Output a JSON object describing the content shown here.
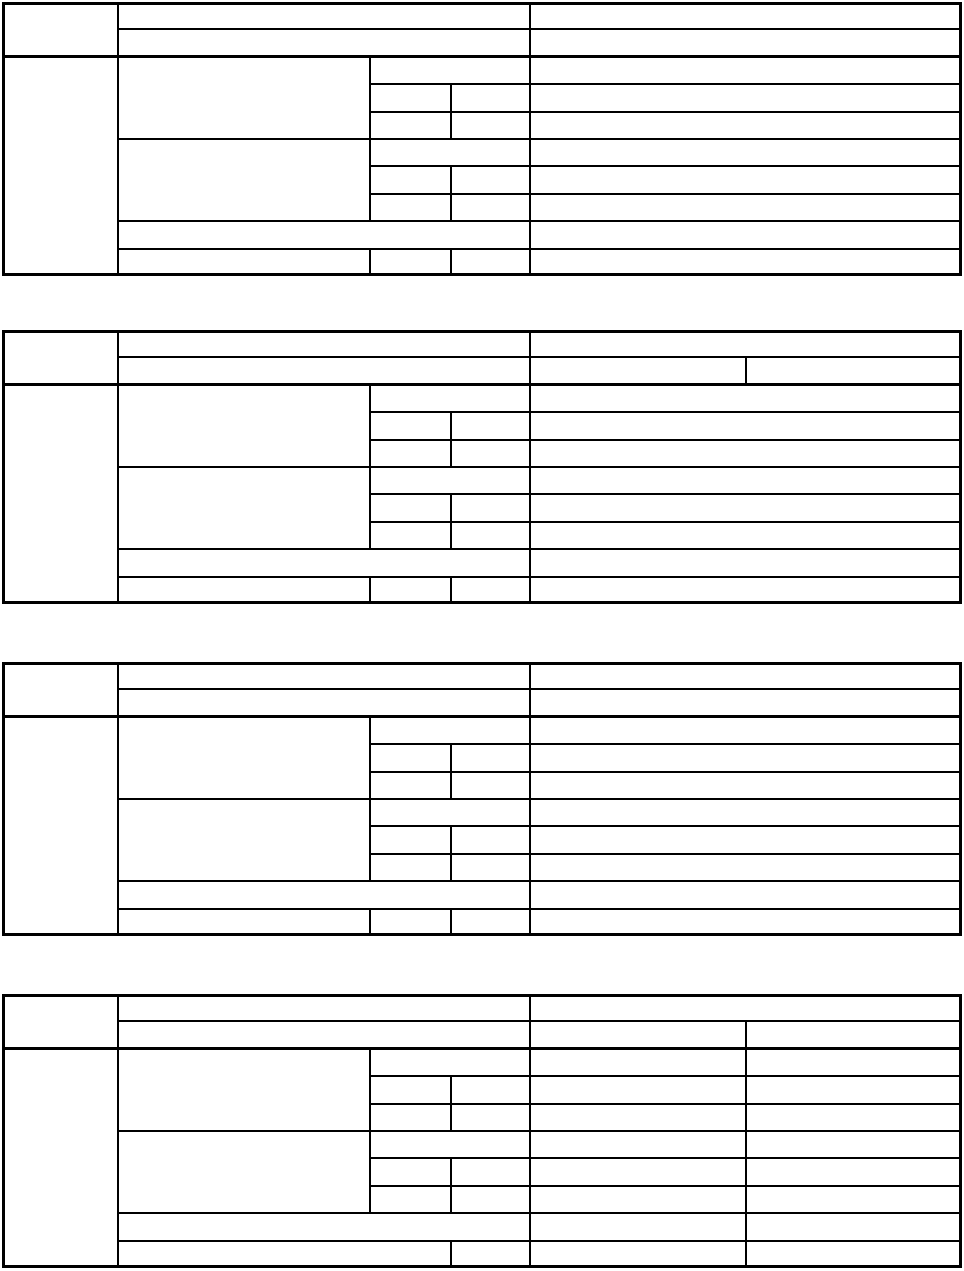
{
  "document": {
    "tables": [
      {
        "id": "table-1",
        "right_header_split": false,
        "right_body_split": false,
        "last_row_merged_left": false
      },
      {
        "id": "table-2",
        "right_header_split": true,
        "right_body_split": false,
        "last_row_merged_left": false
      },
      {
        "id": "table-3",
        "right_header_split": false,
        "right_body_split": false,
        "last_row_merged_left": false
      },
      {
        "id": "table-4",
        "right_header_split": true,
        "right_body_split": true,
        "last_row_merged_left": true
      }
    ],
    "colors": {
      "line": "#000000",
      "background": "#ffffff"
    }
  }
}
